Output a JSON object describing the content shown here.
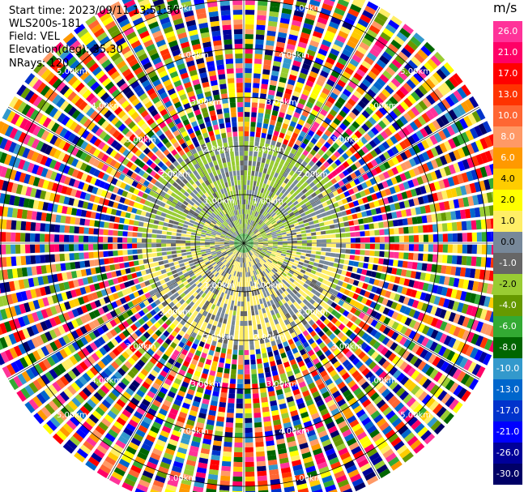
{
  "header": {
    "start_time": "Start time: 2023/09/11 13:51:56",
    "site": "WLS200s-181",
    "field": "Field: VEL",
    "elevation": "Elevation(deg): 35.30",
    "nrays": "NRays: 120"
  },
  "colorbar": {
    "unit": "m/s",
    "ticks": [
      "26.0",
      "21.0",
      "17.0",
      "13.0",
      "10.0",
      "8.0",
      "6.0",
      "4.0",
      "2.0",
      "1.0",
      "0.0",
      "-1.0",
      "-2.0",
      "-4.0",
      "-6.0",
      "-8.0",
      "-10.0",
      "-13.0",
      "-17.0",
      "-21.0",
      "-26.0",
      "-30.0"
    ],
    "colors": [
      "#ff3399",
      "#ff0066",
      "#ff0000",
      "#ff3300",
      "#ff6633",
      "#ff9966",
      "#ff9900",
      "#ffcc00",
      "#ffff00",
      "#ffee66",
      "#778899",
      "#666666",
      "#99cc33",
      "#669900",
      "#33aa33",
      "#006600",
      "#3399cc",
      "#0066cc",
      "#0033cc",
      "#0000ff",
      "#000099",
      "#000066"
    ],
    "text_colors": [
      "#ffffff",
      "#ffffff",
      "#ffffff",
      "#ffffff",
      "#ffffff",
      "#ffffff",
      "#ffffff",
      "#000000",
      "#000000",
      "#000000",
      "#000000",
      "#ffffff",
      "#000000",
      "#ffffff",
      "#ffffff",
      "#ffffff",
      "#ffffff",
      "#ffffff",
      "#ffffff",
      "#ffffff",
      "#ffffff",
      "#ffffff"
    ]
  },
  "chart_data": {
    "type": "ppi",
    "field": "VEL",
    "unit": "m/s",
    "nrays": 120,
    "range_rings_km": [
      1,
      2,
      3,
      4,
      5
    ],
    "ring_labels": [
      "1.00km",
      "2.00km",
      "3.00km",
      "4.00km",
      "5.00km"
    ],
    "max_range_km": 5.6,
    "spokes_deg": [
      0,
      30,
      60,
      90,
      120,
      150,
      180,
      210,
      240,
      270,
      300,
      330
    ],
    "zones": [
      {
        "description_range_km": [
          0,
          0.25
        ],
        "velocity": -6.0
      },
      {
        "description_range_km": [
          0.25,
          2.2
        ],
        "near_side_velocity": 1.0,
        "far_side_velocity": -2.0
      },
      {
        "description_range_km": [
          2.2,
          5.6
        ],
        "velocity": "noise"
      }
    ]
  }
}
